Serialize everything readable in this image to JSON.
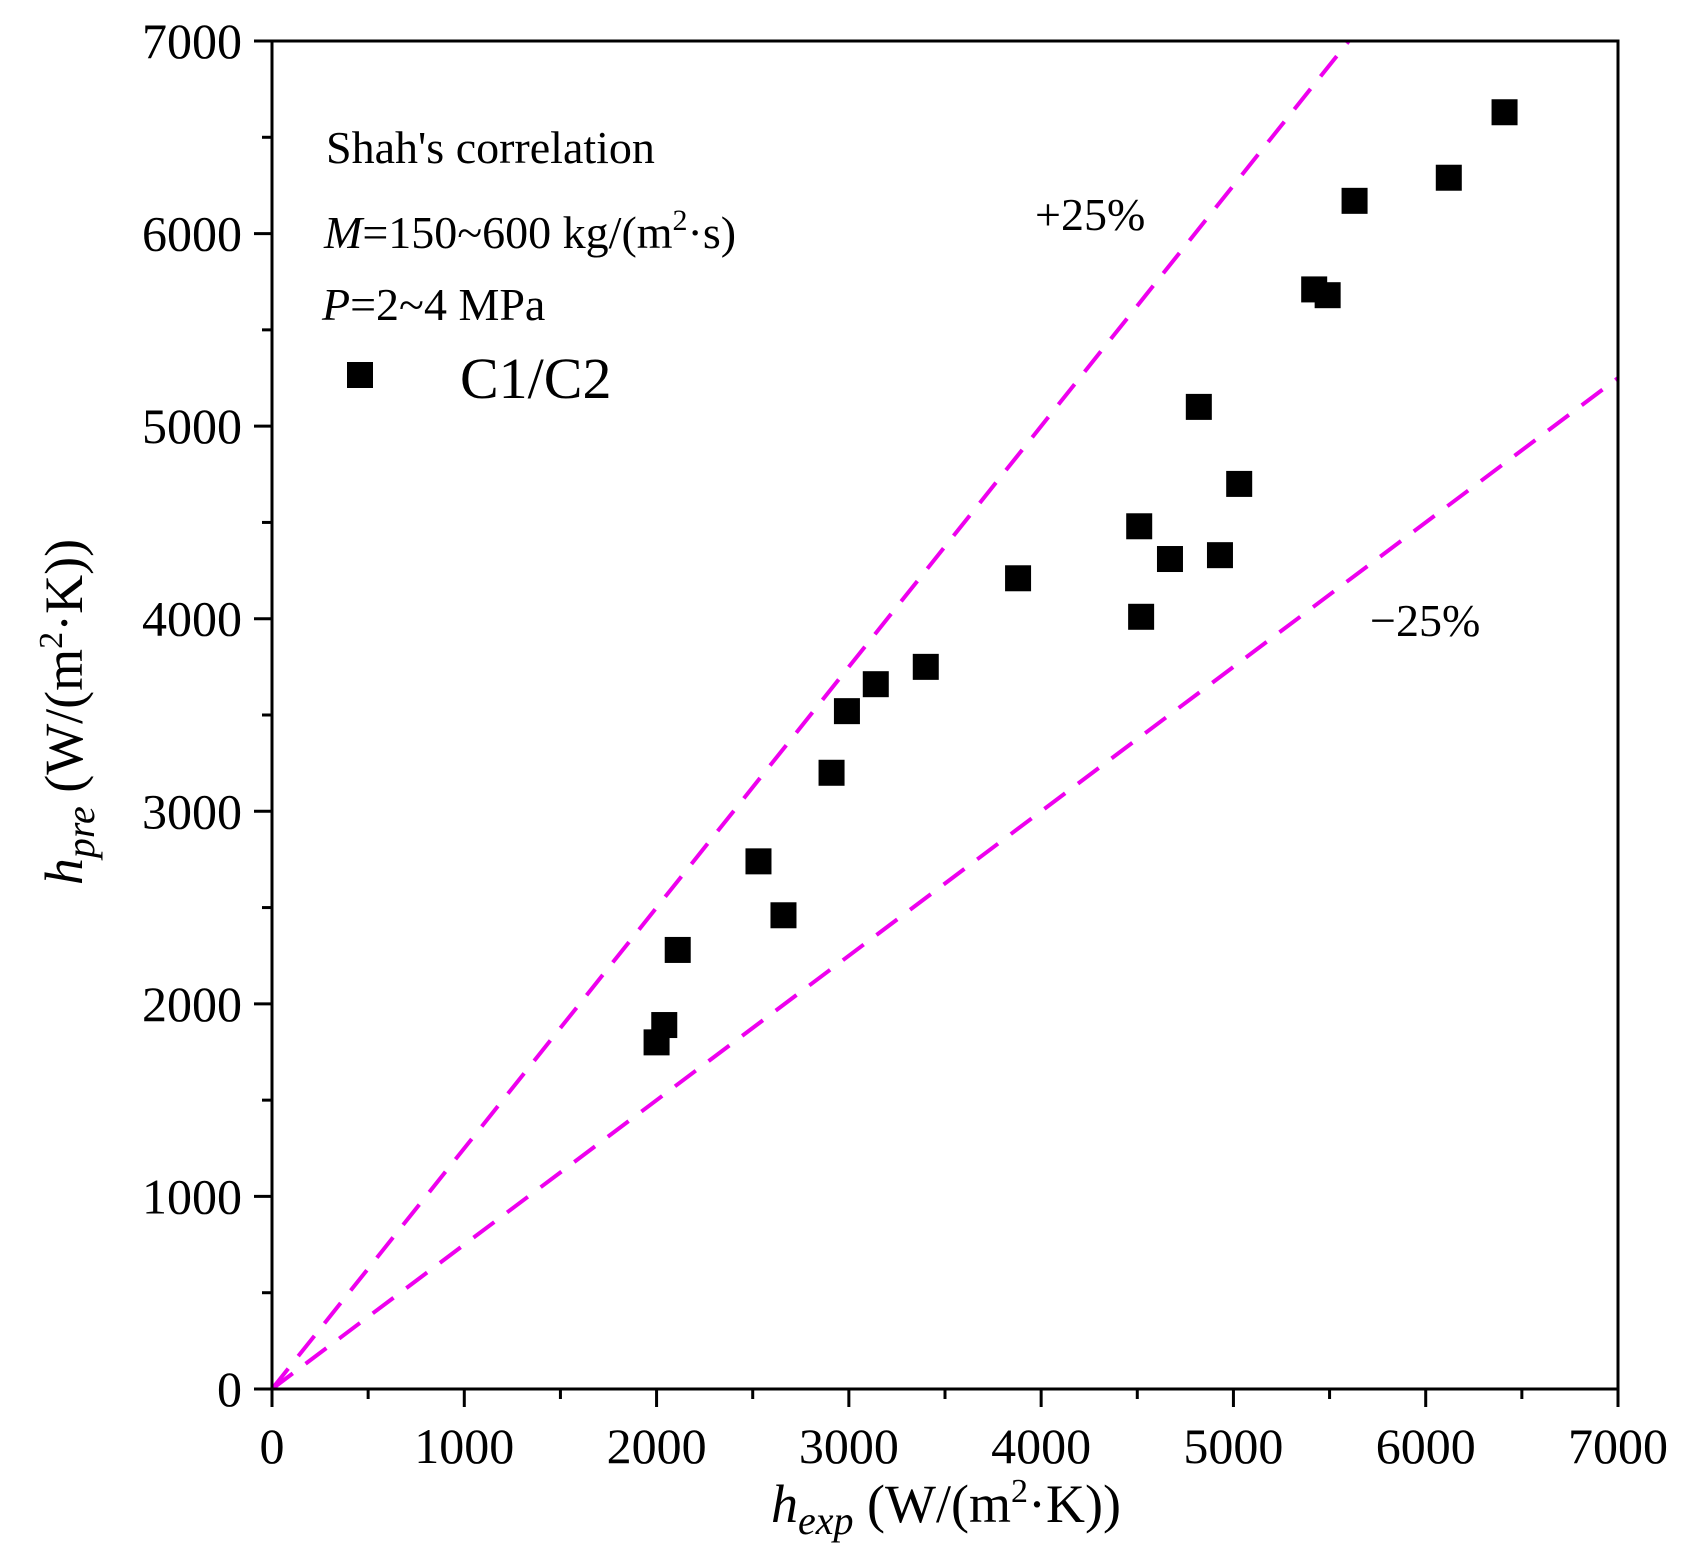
{
  "chart_data": {
    "type": "scatter",
    "xlabel_main": "h",
    "xlabel_sub": "exp",
    "xlabel_unit_pre": " (W/(m",
    "xlabel_unit_sup": "2",
    "xlabel_unit_post": "·K))",
    "ylabel_main": "h",
    "ylabel_sub": "pre",
    "ylabel_unit_pre": " (W/(m",
    "ylabel_unit_sup": "2",
    "ylabel_unit_post": "·K))",
    "xlim": [
      0,
      7000
    ],
    "ylim": [
      0,
      7000
    ],
    "xticks": [
      "0",
      "1000",
      "2000",
      "3000",
      "4000",
      "5000",
      "6000",
      "7000"
    ],
    "yticks": [
      "0",
      "1000",
      "2000",
      "3000",
      "4000",
      "5000",
      "6000",
      "7000"
    ],
    "annotations": {
      "correlation": "Shah's correlation",
      "mass_flux_var": "M",
      "mass_flux_pre": "=150~600 kg/(m",
      "mass_flux_sup": "2",
      "mass_flux_post": "·s)",
      "pressure_var": "P",
      "pressure_text": "=2~4 MPa",
      "plus_band": "+25%",
      "minus_band": "−25%"
    },
    "legend_location": "top-left",
    "bands": [
      {
        "name": "+25%",
        "slope": 1.25,
        "color": "#ee00ee"
      },
      {
        "name": "−25%",
        "slope": 0.75,
        "color": "#ee00ee"
      }
    ],
    "series": [
      {
        "name": "C1/C2",
        "marker": "square",
        "color": "#000000",
        "points": [
          {
            "x": 2000,
            "y": 1800
          },
          {
            "x": 2040,
            "y": 1890
          },
          {
            "x": 2110,
            "y": 2280
          },
          {
            "x": 2530,
            "y": 2740
          },
          {
            "x": 2660,
            "y": 2460
          },
          {
            "x": 2910,
            "y": 3200
          },
          {
            "x": 2990,
            "y": 3520
          },
          {
            "x": 3140,
            "y": 3660
          },
          {
            "x": 3400,
            "y": 3750
          },
          {
            "x": 3880,
            "y": 4210
          },
          {
            "x": 4510,
            "y": 4480
          },
          {
            "x": 4520,
            "y": 4010
          },
          {
            "x": 4670,
            "y": 4310
          },
          {
            "x": 4820,
            "y": 5100
          },
          {
            "x": 4930,
            "y": 4330
          },
          {
            "x": 5030,
            "y": 4700
          },
          {
            "x": 5420,
            "y": 5710
          },
          {
            "x": 5490,
            "y": 5680
          },
          {
            "x": 5630,
            "y": 6170
          },
          {
            "x": 6120,
            "y": 6290
          },
          {
            "x": 6410,
            "y": 6630
          }
        ]
      }
    ]
  }
}
